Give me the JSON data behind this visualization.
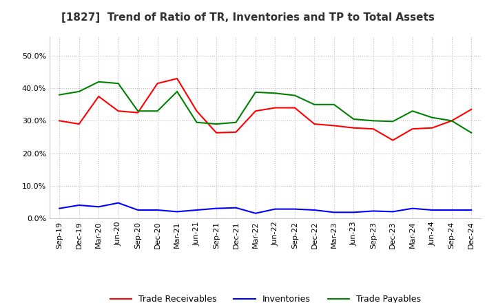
{
  "title": "[1827]  Trend of Ratio of TR, Inventories and TP to Total Assets",
  "x_labels": [
    "Sep-19",
    "Dec-19",
    "Mar-20",
    "Jun-20",
    "Sep-20",
    "Dec-20",
    "Mar-21",
    "Jun-21",
    "Sep-21",
    "Dec-21",
    "Mar-22",
    "Jun-22",
    "Sep-22",
    "Dec-22",
    "Mar-23",
    "Jun-23",
    "Sep-23",
    "Dec-23",
    "Mar-24",
    "Jun-24",
    "Sep-24",
    "Dec-24"
  ],
  "trade_receivables": [
    0.3,
    0.29,
    0.375,
    0.33,
    0.325,
    0.415,
    0.43,
    0.33,
    0.263,
    0.265,
    0.33,
    0.34,
    0.34,
    0.29,
    0.285,
    0.278,
    0.275,
    0.24,
    0.275,
    0.278,
    0.3,
    0.335
  ],
  "inventories": [
    0.03,
    0.04,
    0.035,
    0.047,
    0.025,
    0.025,
    0.02,
    0.025,
    0.03,
    0.032,
    0.015,
    0.028,
    0.028,
    0.025,
    0.018,
    0.018,
    0.022,
    0.02,
    0.03,
    0.025,
    0.025,
    0.025
  ],
  "trade_payables": [
    0.38,
    0.39,
    0.42,
    0.415,
    0.33,
    0.33,
    0.39,
    0.295,
    0.29,
    0.295,
    0.388,
    0.385,
    0.378,
    0.35,
    0.35,
    0.305,
    0.3,
    0.298,
    0.33,
    0.31,
    0.3,
    0.263
  ],
  "tr_color": "#FF0000",
  "inv_color": "#0000FF",
  "tp_color": "#008000",
  "ylim": [
    0.0,
    0.56
  ],
  "yticks": [
    0.0,
    0.1,
    0.2,
    0.3,
    0.4,
    0.5
  ],
  "background_color": "#FFFFFF",
  "grid_color": "#BBBBBB",
  "title_fontsize": 11,
  "tick_fontsize": 8,
  "legend_fontsize": 9
}
